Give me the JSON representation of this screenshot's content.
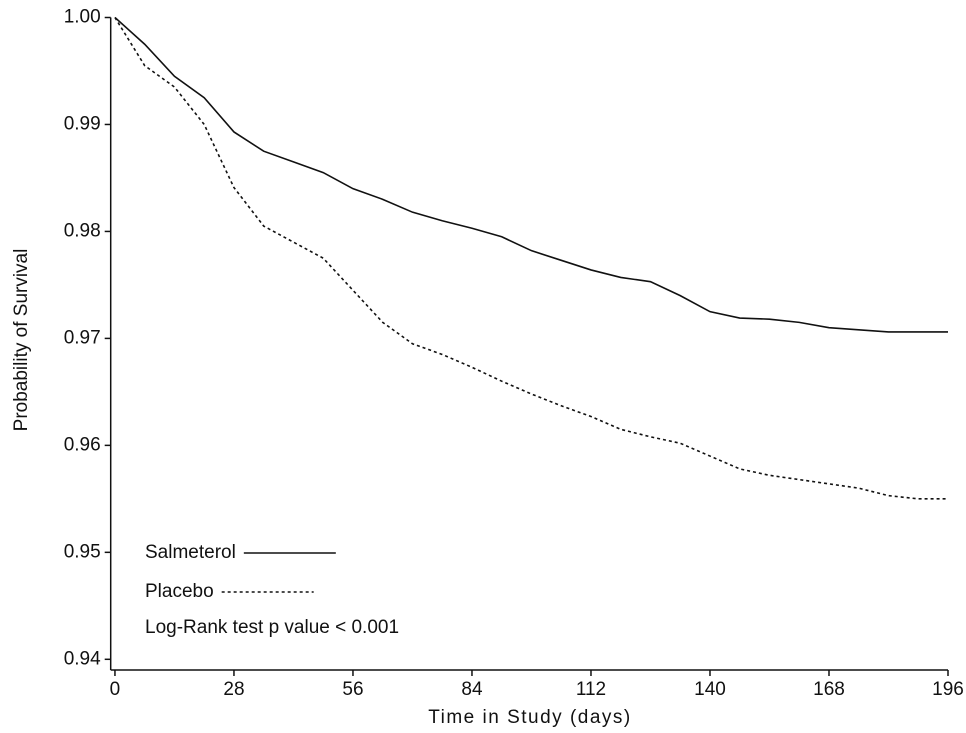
{
  "chart_data": {
    "type": "line",
    "y_label": "Probability of Survival",
    "x_label": "Time in Study (days)",
    "annotation": "Log-Rank test p value  < 0.001",
    "legend": "bottom-left",
    "x": [
      0,
      7,
      14,
      21,
      28,
      35,
      42,
      49,
      56,
      63,
      70,
      77,
      84,
      91,
      98,
      105,
      112,
      119,
      126,
      133,
      140,
      147,
      154,
      161,
      168,
      175,
      182,
      189,
      196
    ],
    "series": [
      {
        "name": "Salmeterol",
        "color": "#111111",
        "dash": "solid",
        "values": [
          1.0,
          0.9975,
          0.9945,
          0.9925,
          0.9893,
          0.9875,
          0.9865,
          0.9855,
          0.984,
          0.983,
          0.9818,
          0.981,
          0.9803,
          0.9795,
          0.9782,
          0.9773,
          0.9764,
          0.9757,
          0.9753,
          0.974,
          0.9725,
          0.9719,
          0.9718,
          0.9715,
          0.971,
          0.9708,
          0.9706,
          0.9706,
          0.9706
        ]
      },
      {
        "name": "Placebo",
        "color": "#111111",
        "dash": "dashed",
        "values": [
          1.0,
          0.9955,
          0.9935,
          0.99,
          0.9841,
          0.9805,
          0.979,
          0.9775,
          0.9745,
          0.9715,
          0.9695,
          0.9685,
          0.9673,
          0.966,
          0.9648,
          0.9637,
          0.9627,
          0.9615,
          0.9608,
          0.9602,
          0.959,
          0.9578,
          0.9572,
          0.9568,
          0.9564,
          0.956,
          0.9553,
          0.955,
          0.955
        ]
      }
    ],
    "xlim": [
      -1,
      196
    ],
    "xticks": [
      0,
      28,
      56,
      84,
      112,
      140,
      168,
      196
    ],
    "ylim": [
      0.939,
      1.0
    ],
    "yticks": [
      {
        "value": 1,
        "label": "1.00"
      },
      0.99,
      0.98,
      0.97,
      0.96,
      0.95,
      0.94
    ],
    "grid": false
  }
}
